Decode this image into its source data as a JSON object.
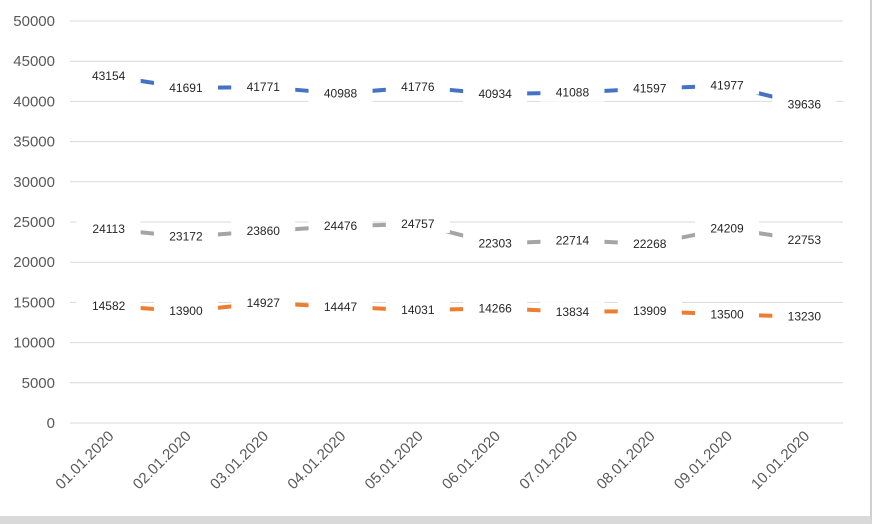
{
  "chart_data": {
    "type": "line",
    "title": "",
    "xlabel": "",
    "ylabel": "",
    "ylim": [
      0,
      50000
    ],
    "yticks": [
      0,
      5000,
      10000,
      15000,
      20000,
      25000,
      30000,
      35000,
      40000,
      45000,
      50000
    ],
    "grid": true,
    "legend": "none",
    "categories": [
      "01.01.2020",
      "02.01.2020",
      "03.01.2020",
      "04.01.2020",
      "05.01.2020",
      "06.01.2020",
      "07.01.2020",
      "08.01.2020",
      "09.01.2020",
      "10.01.2020"
    ],
    "series": [
      {
        "color": "#4472c4",
        "values": [
          43154,
          41691,
          41771,
          40988,
          41776,
          40934,
          41088,
          41597,
          41977,
          39636
        ]
      },
      {
        "color": "#a5a5a5",
        "values": [
          24113,
          23172,
          23860,
          24476,
          24757,
          22303,
          22714,
          22268,
          24209,
          22753
        ]
      },
      {
        "color": "#ed7d31",
        "values": [
          14582,
          13900,
          14927,
          14447,
          14031,
          14266,
          13834,
          13909,
          13500,
          13230
        ]
      }
    ]
  }
}
